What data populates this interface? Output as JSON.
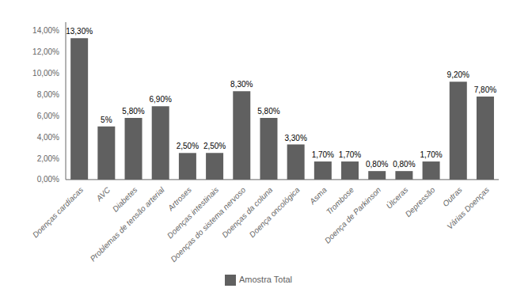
{
  "chart_data": {
    "type": "bar",
    "categories": [
      "Doenças cardíacas",
      "AVC",
      "Diabetes",
      "Problemas de tensão arterial",
      "Artroses",
      "Doenças intestinais",
      "Doenças do sistema nervoso",
      "Doenças da coluna",
      "Doença oncológica",
      "Asma",
      "Trombose",
      "Doença de Parkinson",
      "Úlceras",
      "Depressão",
      "Outras",
      "Várias Doenças"
    ],
    "series": [
      {
        "name": "Amostra Total",
        "color": "#606060",
        "values": [
          13.3,
          5.0,
          5.8,
          6.9,
          2.5,
          2.5,
          8.3,
          5.8,
          3.3,
          1.7,
          1.7,
          0.8,
          0.8,
          1.7,
          9.2,
          7.8
        ],
        "value_labels": [
          "13,30%",
          "5%",
          "5,80%",
          "6,90%",
          "2,50%",
          "2,50%",
          "8,30%",
          "5,80%",
          "3,30%",
          "1,70%",
          "1,70%",
          "0,80%",
          "0,80%",
          "1,70%",
          "9,20%",
          "7,80%"
        ]
      }
    ],
    "ylim": [
      0,
      14.8
    ],
    "yticks": [
      {
        "value": 0,
        "label": "0,00%"
      },
      {
        "value": 2,
        "label": "2,00%"
      },
      {
        "value": 4,
        "label": "4,00%"
      },
      {
        "value": 6,
        "label": "6,00%"
      },
      {
        "value": 8,
        "label": "8,00%"
      },
      {
        "value": 10,
        "label": "10,00%"
      },
      {
        "value": 12,
        "label": "12,00%"
      },
      {
        "value": 14,
        "label": "14,00%"
      }
    ],
    "legend": "bottom",
    "data_labels": true
  }
}
